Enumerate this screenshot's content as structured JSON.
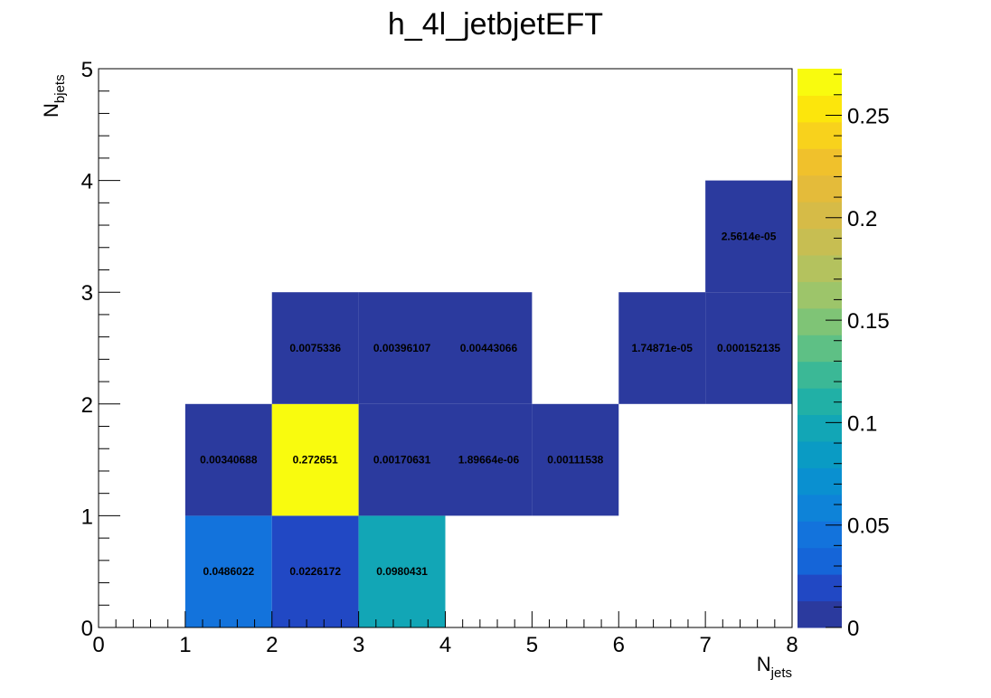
{
  "chart_data": {
    "type": "heatmap",
    "title": "h_4l_jetbjetEFT",
    "xlabel": {
      "main": "N",
      "sub": "jets"
    },
    "ylabel": {
      "main": "N",
      "sub": "bjets"
    },
    "xlim": [
      0,
      8
    ],
    "ylim": [
      0,
      5
    ],
    "x_ticks": [
      0,
      1,
      2,
      3,
      4,
      5,
      6,
      7,
      8
    ],
    "y_ticks": [
      0,
      1,
      2,
      3,
      4,
      5
    ],
    "z_range": [
      0,
      0.2727
    ],
    "z_ticks": [
      "0",
      "0.05",
      "0.1",
      "0.15",
      "0.2",
      "0.25"
    ],
    "z_tick_values": [
      0,
      0.05,
      0.1,
      0.15,
      0.2,
      0.25
    ],
    "palette": [
      "#2b3a9e",
      "#2148c4",
      "#1565d8",
      "#1373dc",
      "#0e83d8",
      "#0a90d0",
      "#0a9bc4",
      "#12a6b6",
      "#21b0a6",
      "#3bb896",
      "#5ec085",
      "#7fc476",
      "#9dc56a",
      "#b4c25e",
      "#c7be52",
      "#d6bb47",
      "#e4bb3a",
      "#f0c12c",
      "#f8d21c",
      "#fce60c",
      "#f9fb0e"
    ],
    "cells": [
      {
        "x": [
          1,
          2
        ],
        "y": [
          0,
          1
        ],
        "value": 0.0486022,
        "label": "0.0486022"
      },
      {
        "x": [
          2,
          3
        ],
        "y": [
          0,
          1
        ],
        "value": 0.0226172,
        "label": "0.0226172"
      },
      {
        "x": [
          3,
          4
        ],
        "y": [
          0,
          1
        ],
        "value": 0.0980431,
        "label": "0.0980431"
      },
      {
        "x": [
          1,
          2
        ],
        "y": [
          1,
          2
        ],
        "value": 0.00340688,
        "label": "0.00340688"
      },
      {
        "x": [
          2,
          3
        ],
        "y": [
          1,
          2
        ],
        "value": 0.272651,
        "label": "0.272651"
      },
      {
        "x": [
          3,
          4
        ],
        "y": [
          1,
          2
        ],
        "value": 0.00170631,
        "label": "0.00170631"
      },
      {
        "x": [
          4,
          5
        ],
        "y": [
          1,
          2
        ],
        "value": 1.89664e-06,
        "label": "1.89664e-06"
      },
      {
        "x": [
          5,
          6
        ],
        "y": [
          1,
          2
        ],
        "value": 0.00111538,
        "label": "0.00111538"
      },
      {
        "x": [
          2,
          3
        ],
        "y": [
          2,
          3
        ],
        "value": 0.0075336,
        "label": "0.0075336"
      },
      {
        "x": [
          3,
          4
        ],
        "y": [
          2,
          3
        ],
        "value": 0.00396107,
        "label": "0.00396107"
      },
      {
        "x": [
          4,
          5
        ],
        "y": [
          2,
          3
        ],
        "value": 0.00443066,
        "label": "0.00443066"
      },
      {
        "x": [
          6,
          7
        ],
        "y": [
          2,
          3
        ],
        "value": 1.74871e-05,
        "label": "1.74871e-05"
      },
      {
        "x": [
          7,
          8
        ],
        "y": [
          2,
          3
        ],
        "value": 0.000152135,
        "label": "0.000152135"
      },
      {
        "x": [
          7,
          8
        ],
        "y": [
          3,
          4
        ],
        "value": 2.5614e-05,
        "label": "2.5614e-05"
      }
    ]
  }
}
